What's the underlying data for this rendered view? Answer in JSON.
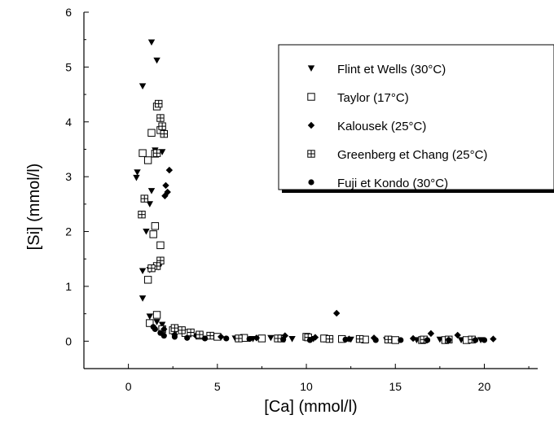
{
  "chart_data": {
    "type": "scatter",
    "xlabel": "[Ca] (mmol/l)",
    "ylabel": "[Si] (mmol/l)",
    "xlim": [
      -2.5,
      23
    ],
    "ylim": [
      -0.5,
      6
    ],
    "xticks": [
      "0",
      "5",
      "10",
      "15",
      "20"
    ],
    "yticks": [
      "0",
      "1",
      "2",
      "3",
      "4",
      "5",
      "6"
    ],
    "grid": false,
    "legend_position": "top-right",
    "series": [
      {
        "name": "Flint et Wells (30°C)",
        "marker": "triangle-down-filled",
        "points": [
          [
            1.3,
            5.45
          ],
          [
            1.6,
            5.12
          ],
          [
            0.8,
            4.65
          ],
          [
            1.5,
            3.48
          ],
          [
            1.9,
            3.45
          ],
          [
            0.5,
            3.08
          ],
          [
            0.45,
            2.98
          ],
          [
            1.3,
            2.74
          ],
          [
            1.2,
            2.5
          ],
          [
            1.0,
            2.0
          ],
          [
            0.8,
            1.28
          ],
          [
            1.2,
            1.3
          ],
          [
            1.7,
            1.35
          ],
          [
            0.8,
            0.78
          ],
          [
            1.2,
            0.45
          ],
          [
            1.6,
            0.35
          ],
          [
            1.9,
            0.3
          ],
          [
            2.5,
            0.2
          ],
          [
            3.5,
            0.12
          ],
          [
            5.0,
            0.07
          ],
          [
            6.0,
            0.05
          ],
          [
            7.0,
            0.04
          ],
          [
            8.0,
            0.06
          ],
          [
            9.2,
            0.04
          ],
          [
            10.4,
            0.04
          ],
          [
            11.0,
            0.03
          ],
          [
            12.5,
            0.03
          ],
          [
            14.5,
            0.02
          ],
          [
            15.0,
            0.02
          ],
          [
            16.2,
            0.02
          ],
          [
            17.5,
            0.03
          ],
          [
            18.7,
            0.02
          ],
          [
            19.8,
            0.02
          ]
        ]
      },
      {
        "name": "Taylor (17°C)",
        "marker": "square-open",
        "points": [
          [
            1.6,
            4.28
          ],
          [
            1.3,
            3.8
          ],
          [
            0.8,
            3.43
          ],
          [
            1.1,
            3.3
          ],
          [
            1.5,
            3.42
          ],
          [
            1.8,
            3.85
          ],
          [
            1.5,
            2.1
          ],
          [
            1.4,
            1.95
          ],
          [
            1.8,
            1.75
          ],
          [
            1.1,
            1.12
          ],
          [
            1.6,
            0.48
          ],
          [
            1.2,
            0.33
          ],
          [
            1.9,
            0.22
          ],
          [
            2.5,
            0.2
          ],
          [
            3.2,
            0.15
          ],
          [
            4.0,
            0.1
          ],
          [
            5.0,
            0.08
          ],
          [
            6.5,
            0.06
          ],
          [
            7.5,
            0.05
          ],
          [
            8.6,
            0.05
          ],
          [
            10.0,
            0.08
          ],
          [
            11.0,
            0.05
          ],
          [
            12.0,
            0.04
          ],
          [
            13.3,
            0.03
          ],
          [
            15.0,
            0.02
          ],
          [
            16.5,
            0.02
          ],
          [
            17.8,
            0.02
          ],
          [
            19.0,
            0.02
          ]
        ]
      },
      {
        "name": "Kalousek (25°C)",
        "marker": "diamond-filled",
        "points": [
          [
            2.3,
            3.12
          ],
          [
            2.1,
            2.84
          ],
          [
            2.2,
            2.72
          ],
          [
            2.05,
            2.65
          ],
          [
            1.7,
            1.38
          ],
          [
            2.0,
            0.22
          ],
          [
            2.6,
            0.12
          ],
          [
            3.8,
            0.1
          ],
          [
            5.2,
            0.08
          ],
          [
            7.2,
            0.06
          ],
          [
            8.8,
            0.1
          ],
          [
            10.5,
            0.07
          ],
          [
            11.7,
            0.51
          ],
          [
            12.4,
            0.04
          ],
          [
            13.8,
            0.06
          ],
          [
            16.0,
            0.05
          ],
          [
            17.0,
            0.14
          ],
          [
            18.5,
            0.11
          ],
          [
            20.5,
            0.04
          ]
        ]
      },
      {
        "name": "Greenberg et Chang (25°C)",
        "marker": "square-crossed",
        "points": [
          [
            1.7,
            4.33
          ],
          [
            1.8,
            4.07
          ],
          [
            1.9,
            3.92
          ],
          [
            2.0,
            3.78
          ],
          [
            1.6,
            3.43
          ],
          [
            0.9,
            2.6
          ],
          [
            0.75,
            2.31
          ],
          [
            1.8,
            1.47
          ],
          [
            1.6,
            1.37
          ],
          [
            1.3,
            1.33
          ],
          [
            2.6,
            0.24
          ],
          [
            3.0,
            0.2
          ],
          [
            3.5,
            0.16
          ],
          [
            4.0,
            0.12
          ],
          [
            4.6,
            0.1
          ],
          [
            6.2,
            0.05
          ],
          [
            8.4,
            0.05
          ],
          [
            10.1,
            0.07
          ],
          [
            11.3,
            0.04
          ],
          [
            13.0,
            0.04
          ],
          [
            14.6,
            0.03
          ],
          [
            16.6,
            0.03
          ],
          [
            18.0,
            0.03
          ],
          [
            19.3,
            0.03
          ]
        ]
      },
      {
        "name": "Fuji et Kondo (30°C)",
        "marker": "circle-filled",
        "points": [
          [
            1.4,
            0.26
          ],
          [
            1.5,
            0.22
          ],
          [
            1.8,
            0.15
          ],
          [
            2.0,
            0.1
          ],
          [
            2.6,
            0.08
          ],
          [
            3.3,
            0.06
          ],
          [
            4.3,
            0.05
          ],
          [
            5.5,
            0.05
          ],
          [
            6.8,
            0.04
          ],
          [
            8.7,
            0.03
          ],
          [
            10.2,
            0.02
          ],
          [
            12.2,
            0.03
          ],
          [
            13.9,
            0.02
          ],
          [
            15.3,
            0.02
          ],
          [
            16.8,
            0.02
          ],
          [
            18.0,
            0.02
          ],
          [
            19.5,
            0.02
          ],
          [
            20.0,
            0.02
          ]
        ]
      }
    ]
  }
}
